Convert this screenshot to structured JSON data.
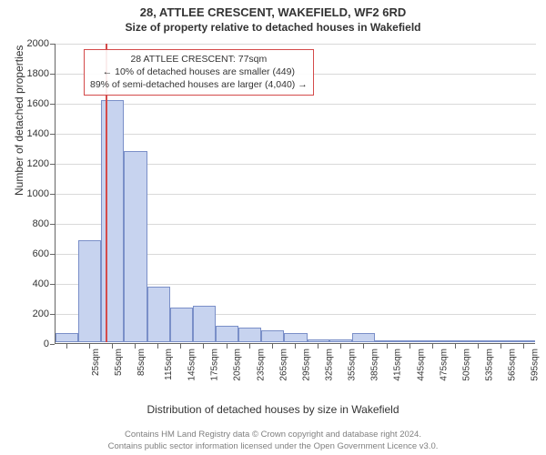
{
  "title_line1": "28, ATTLEE CRESCENT, WAKEFIELD, WF2 6RD",
  "title_line2": "Size of property relative to detached houses in Wakefield",
  "y_axis_label": "Number of detached properties",
  "x_axis_label": "Distribution of detached houses by size in Wakefield",
  "footer_line1": "Contains HM Land Registry data © Crown copyright and database right 2024.",
  "footer_line2": "Contains public sector information licensed under the Open Government Licence v3.0.",
  "annotation": {
    "line1": "28 ATTLEE CRESCENT: 77sqm",
    "line2": "← 10% of detached houses are smaller (449)",
    "line3": "89% of semi-detached houses are larger (4,040) →",
    "border_color": "#d44a4a"
  },
  "marker": {
    "value_sqm": 77,
    "color": "#d44a4a"
  },
  "chart": {
    "type": "histogram",
    "y_min": 0,
    "y_max": 2000,
    "y_tick_step": 200,
    "bar_fill": "#c7d3ef",
    "bar_border": "#7a8fc8",
    "grid_color": "#d9d9d9",
    "axis_color": "#666666",
    "background": "#ffffff",
    "x_tick_interval": 30,
    "x_tick_start": 25,
    "x_tick_suffix": "sqm",
    "bins": [
      {
        "start": 10,
        "end": 40,
        "count": 60
      },
      {
        "start": 40,
        "end": 70,
        "count": 680
      },
      {
        "start": 70,
        "end": 100,
        "count": 1610
      },
      {
        "start": 100,
        "end": 130,
        "count": 1270
      },
      {
        "start": 130,
        "end": 160,
        "count": 370
      },
      {
        "start": 160,
        "end": 190,
        "count": 230
      },
      {
        "start": 190,
        "end": 220,
        "count": 240
      },
      {
        "start": 220,
        "end": 250,
        "count": 110
      },
      {
        "start": 250,
        "end": 280,
        "count": 100
      },
      {
        "start": 280,
        "end": 310,
        "count": 80
      },
      {
        "start": 310,
        "end": 340,
        "count": 60
      },
      {
        "start": 340,
        "end": 369,
        "count": 20
      },
      {
        "start": 369,
        "end": 399,
        "count": 20
      },
      {
        "start": 399,
        "end": 429,
        "count": 60
      },
      {
        "start": 429,
        "end": 459,
        "count": 5
      },
      {
        "start": 459,
        "end": 489,
        "count": 5
      },
      {
        "start": 489,
        "end": 519,
        "count": 5
      },
      {
        "start": 519,
        "end": 549,
        "count": 5
      },
      {
        "start": 549,
        "end": 579,
        "count": 5
      },
      {
        "start": 579,
        "end": 609,
        "count": 5
      },
      {
        "start": 609,
        "end": 639,
        "count": 5
      }
    ],
    "x_domain_min": 10,
    "x_domain_max": 640
  }
}
